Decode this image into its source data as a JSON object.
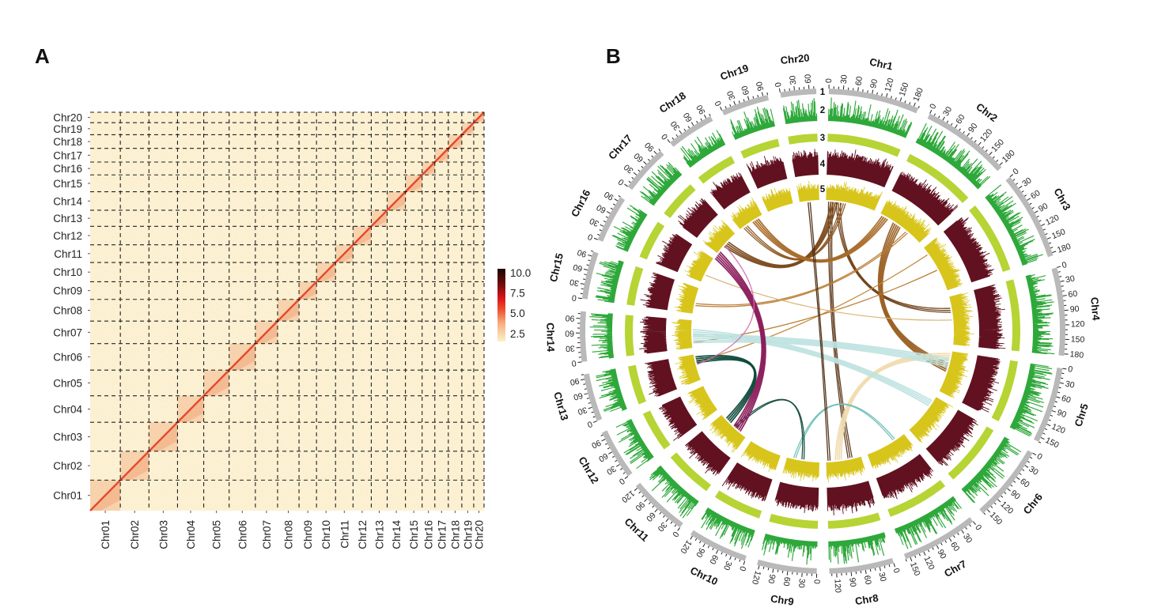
{
  "panels": {
    "a_label": "A",
    "b_label": "B"
  },
  "chart_data": [
    {
      "type": "heatmap",
      "title": "Hi-C contact heatmap",
      "xlabel": "",
      "ylabel": "",
      "grid": true,
      "chromosomes": [
        "Chr01",
        "Chr02",
        "Chr03",
        "Chr04",
        "Chr05",
        "Chr06",
        "Chr07",
        "Chr08",
        "Chr09",
        "Chr10",
        "Chr11",
        "Chr12",
        "Chr13",
        "Chr14",
        "Chr15",
        "Chr16",
        "Chr17",
        "Chr18",
        "Chr19",
        "Chr20"
      ],
      "relative_lengths": [
        38,
        36,
        36,
        33,
        32,
        33,
        28,
        27,
        22,
        24,
        22,
        23,
        20,
        23,
        21,
        16,
        17,
        17,
        15,
        13
      ],
      "colorbar": {
        "ticks": [
          "10.0",
          "7.5",
          "5.0",
          "2.5"
        ],
        "tick_values": [
          10.0,
          7.5,
          5.0,
          2.5
        ],
        "range": [
          1.5,
          10.5
        ],
        "colors": [
          "#fdf6d9",
          "#f7b98a",
          "#ef6a3e",
          "#e31a1c",
          "#8c0d0d",
          "#1a0505"
        ],
        "placement": "right"
      },
      "diagonal_intensity": 6.0,
      "intra_block_intensity": 3.2,
      "background_intensity": 2.0
    },
    {
      "type": "circos",
      "title": "",
      "track_labels": [
        "1",
        "2",
        "3",
        "4",
        "5"
      ],
      "tracks": [
        {
          "id": 1,
          "kind": "ideogram",
          "color": "#b9b9b9"
        },
        {
          "id": 2,
          "kind": "histogram",
          "color": "#2ea83a"
        },
        {
          "id": 3,
          "kind": "band",
          "color": "#b6d434"
        },
        {
          "id": 4,
          "kind": "histogram",
          "color": "#621120"
        },
        {
          "id": 5,
          "kind": "histogram",
          "color": "#d8c51c"
        }
      ],
      "chromosomes": [
        {
          "name": "Chr1",
          "length": 190,
          "ticks": [
            "0",
            "30",
            "60",
            "90",
            "120",
            "150",
            "180"
          ]
        },
        {
          "name": "Chr2",
          "length": 186,
          "ticks": [
            "0",
            "30",
            "60",
            "90",
            "120",
            "150",
            "180"
          ]
        },
        {
          "name": "Chr3",
          "length": 186,
          "ticks": [
            "0",
            "30",
            "60",
            "90",
            "120",
            "150",
            "180"
          ]
        },
        {
          "name": "Chr4",
          "length": 184,
          "ticks": [
            "0",
            "30",
            "60",
            "90",
            "120",
            "150",
            "180"
          ]
        },
        {
          "name": "Chr5",
          "length": 160,
          "ticks": [
            "0",
            "30",
            "60",
            "90",
            "120",
            "150"
          ]
        },
        {
          "name": "Chr6",
          "length": 162,
          "ticks": [
            "0",
            "30",
            "60",
            "90",
            "120",
            "150"
          ]
        },
        {
          "name": "Chr7",
          "length": 160,
          "ticks": [
            "0",
            "30",
            "60",
            "90",
            "120",
            "150"
          ]
        },
        {
          "name": "Chr8",
          "length": 135,
          "ticks": [
            "0",
            "30",
            "60",
            "90",
            "120"
          ]
        },
        {
          "name": "Chr9",
          "length": 125,
          "ticks": [
            "0",
            "30",
            "60",
            "90",
            "120"
          ]
        },
        {
          "name": "Chr10",
          "length": 125,
          "ticks": [
            "0",
            "30",
            "60",
            "90",
            "120"
          ]
        },
        {
          "name": "Chr11",
          "length": 125,
          "ticks": [
            "0",
            "30",
            "60",
            "90",
            "120"
          ]
        },
        {
          "name": "Chr12",
          "length": 105,
          "ticks": [
            "0",
            "30",
            "60",
            "90"
          ]
        },
        {
          "name": "Chr13",
          "length": 100,
          "ticks": [
            "0",
            "30",
            "60",
            "90"
          ]
        },
        {
          "name": "Chr14",
          "length": 105,
          "ticks": [
            "0",
            "30",
            "60",
            "90"
          ]
        },
        {
          "name": "Chr15",
          "length": 100,
          "ticks": [
            "0",
            "30",
            "60",
            "90"
          ]
        },
        {
          "name": "Chr16",
          "length": 100,
          "ticks": [
            "0",
            "30",
            "60",
            "90"
          ]
        },
        {
          "name": "Chr17",
          "length": 100,
          "ticks": [
            "0",
            "30",
            "60",
            "90"
          ]
        },
        {
          "name": "Chr18",
          "length": 100,
          "ticks": [
            "0",
            "30",
            "60",
            "90"
          ]
        },
        {
          "name": "Chr19",
          "length": 100,
          "ticks": [
            "0",
            "30",
            "60",
            "90"
          ]
        },
        {
          "name": "Chr20",
          "length": 75,
          "ticks": [
            "0",
            "30",
            "60"
          ]
        }
      ],
      "links": [
        {
          "from": [
            "Chr1",
            10
          ],
          "to": [
            "Chr8",
            50
          ],
          "color": "#5a3515",
          "count": 3
        },
        {
          "from": [
            "Chr1",
            20
          ],
          "to": [
            "Chr17",
            60
          ],
          "color": "#7a4a1c",
          "count": 4
        },
        {
          "from": [
            "Chr1",
            40
          ],
          "to": [
            "Chr4",
            60
          ],
          "color": "#6b3d14",
          "count": 3
        },
        {
          "from": [
            "Chr1",
            60
          ],
          "to": [
            "Chr18",
            30
          ],
          "color": "#8a5520",
          "count": 3
        },
        {
          "from": [
            "Chr2",
            10
          ],
          "to": [
            "Chr18",
            80
          ],
          "color": "#a86a28",
          "count": 4
        },
        {
          "from": [
            "Chr2",
            60
          ],
          "to": [
            "Chr5",
            80
          ],
          "color": "#9a6024",
          "count": 5
        },
        {
          "from": [
            "Chr2",
            120
          ],
          "to": [
            "Chr15",
            40
          ],
          "color": "#b87a30",
          "count": 2
        },
        {
          "from": [
            "Chr3",
            30
          ],
          "to": [
            "Chr13",
            70
          ],
          "color": "#c08a3a",
          "count": 1
        },
        {
          "from": [
            "Chr3",
            100
          ],
          "to": [
            "Chr14",
            20
          ],
          "color": "#b8782e",
          "count": 1
        },
        {
          "from": [
            "Chr4",
            90
          ],
          "to": [
            "Chr16",
            30
          ],
          "color": "#d9b47a",
          "count": 1
        },
        {
          "from": [
            "Chr5",
            10
          ],
          "to": [
            "Chr8",
            100
          ],
          "color": "#f0dcb0",
          "count": 4
        },
        {
          "from": [
            "Chr5",
            30
          ],
          "to": [
            "Chr14",
            50
          ],
          "color": "#bfe3e0",
          "count": 5
        },
        {
          "from": [
            "Chr6",
            20
          ],
          "to": [
            "Chr14",
            70
          ],
          "color": "#bfe3e0",
          "count": 4
        },
        {
          "from": [
            "Chr7",
            40
          ],
          "to": [
            "Chr9",
            100
          ],
          "color": "#6fbfb6",
          "count": 2
        },
        {
          "from": [
            "Chr8",
            120
          ],
          "to": [
            "Chr20",
            40
          ],
          "color": "#4a2a10",
          "count": 2
        },
        {
          "from": [
            "Chr9",
            60
          ],
          "to": [
            "Chr11",
            60
          ],
          "color": "#0f4a3a",
          "count": 2
        },
        {
          "from": [
            "Chr11",
            30
          ],
          "to": [
            "Chr17",
            10
          ],
          "color": "#8a1a5a",
          "count": 5
        },
        {
          "from": [
            "Chr11",
            80
          ],
          "to": [
            "Chr13",
            90
          ],
          "color": "#0f4a3a",
          "count": 4
        },
        {
          "from": [
            "Chr13",
            60
          ],
          "to": [
            "Chr17",
            40
          ],
          "color": "#d070b0",
          "count": 1
        }
      ]
    }
  ]
}
